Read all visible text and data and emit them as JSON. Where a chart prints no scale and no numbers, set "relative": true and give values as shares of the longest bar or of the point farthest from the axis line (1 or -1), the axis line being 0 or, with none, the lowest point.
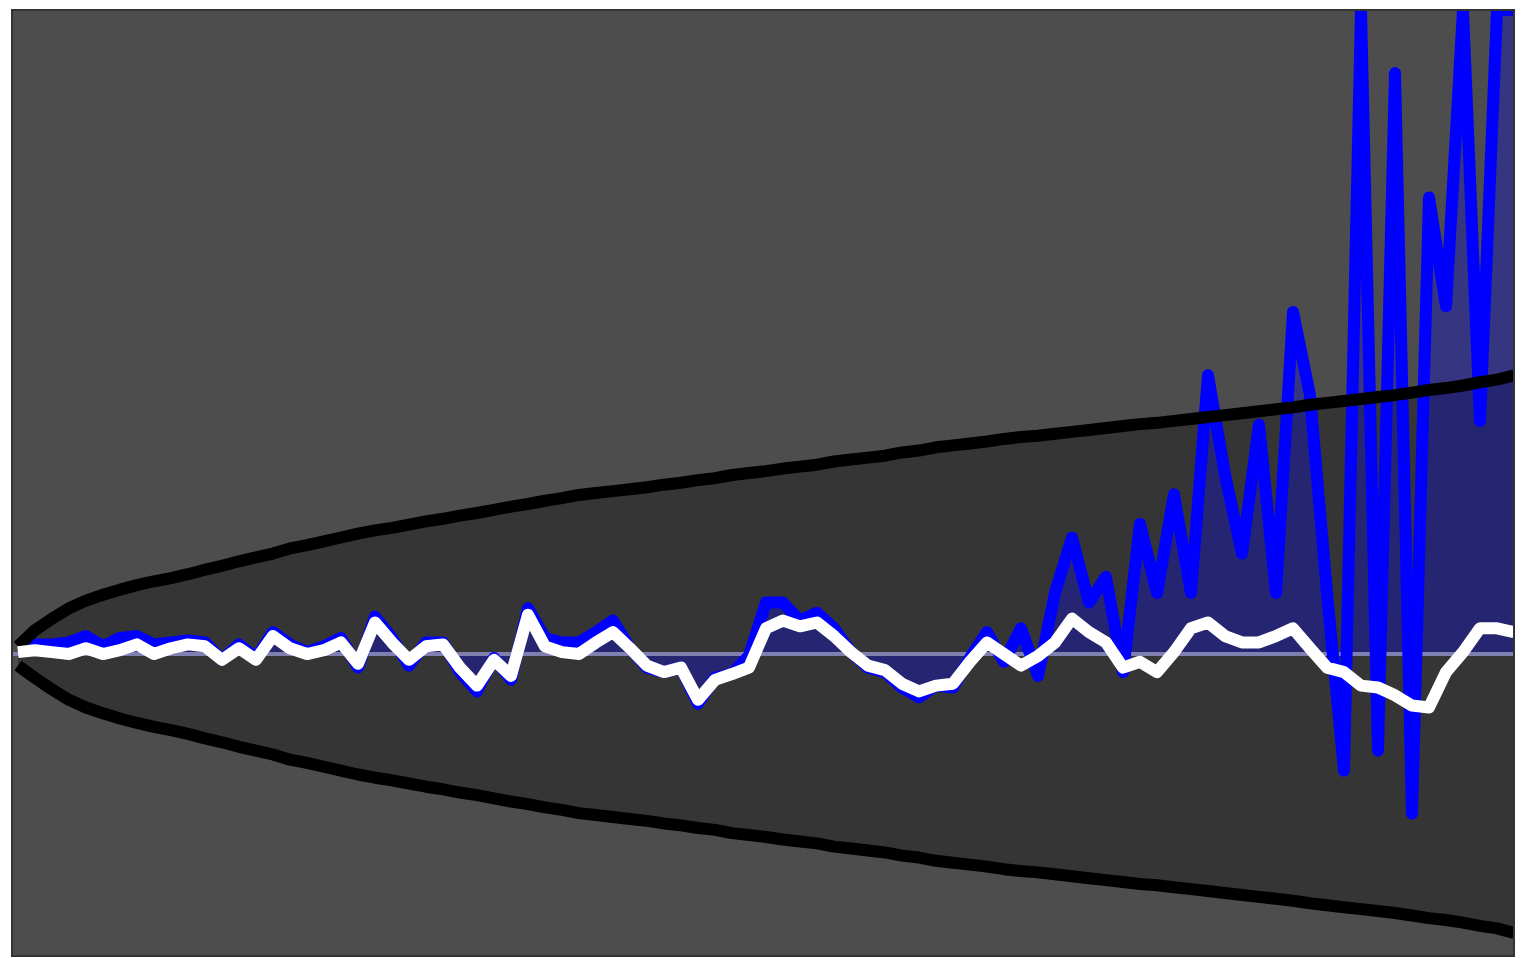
{
  "chart_data": {
    "type": "line",
    "relative": true,
    "ref_lines": [
      {
        "axis": "y",
        "value": 0,
        "color": "#8080b0"
      }
    ],
    "categories": [
      null,
      null,
      null,
      null,
      null,
      null,
      null,
      null,
      null,
      null,
      null,
      null,
      null,
      null,
      null,
      null,
      null,
      null,
      null,
      null,
      null,
      null,
      null,
      null,
      null,
      null,
      null,
      null,
      null,
      null,
      null,
      null,
      null,
      null,
      null,
      null,
      null,
      null,
      null,
      null,
      null,
      null,
      null,
      null,
      null,
      null,
      null,
      null,
      null,
      null,
      null,
      null,
      null,
      null,
      null,
      null,
      null,
      null,
      null,
      null,
      null,
      null,
      null,
      null,
      null,
      null,
      null,
      null,
      null,
      null,
      null,
      null,
      null,
      null,
      null,
      null,
      null,
      null,
      null,
      null,
      null,
      null,
      null,
      null,
      null,
      null,
      null,
      null,
      null
    ],
    "series": [
      {
        "type": "line",
        "color": "#ffffff",
        "values": [
          0.003,
          0.006,
          0.003,
          0,
          0.009,
          0,
          0.006,
          0.015,
          0,
          0.009,
          0.015,
          0.012,
          -0.009,
          0.009,
          -0.009,
          0.028,
          0.009,
          0,
          0.006,
          0.018,
          -0.015,
          0.049,
          0.018,
          -0.009,
          0.012,
          0.015,
          -0.021,
          -0.049,
          -0.009,
          -0.034,
          0.061,
          0.012,
          0.003,
          0,
          0.018,
          0.034,
          0.009,
          -0.018,
          -0.028,
          -0.021,
          -0.071,
          -0.04,
          -0.031,
          -0.021,
          0.04,
          0.052,
          0.043,
          0.049,
          0.028,
          0.003,
          -0.018,
          -0.025,
          -0.046,
          -0.058,
          -0.049,
          -0.046,
          -0.012,
          0.018,
          0,
          -0.018,
          -0.003,
          0.018,
          0.055,
          0.034,
          0.018,
          -0.021,
          -0.012,
          -0.028,
          0.003,
          0.04,
          0.049,
          0.028,
          0.018,
          0.018,
          0.028,
          0.04,
          0.009,
          -0.021,
          -0.028,
          -0.049,
          -0.052,
          -0.064,
          -0.08,
          -0.083,
          -0.028,
          0.003,
          0.04,
          0.04,
          0.034
        ],
        "lower": [
          -0.018,
          -0.037,
          -0.055,
          -0.071,
          -0.083,
          -0.092,
          -0.1,
          -0.107,
          -0.113,
          -0.118,
          -0.124,
          -0.131,
          -0.137,
          -0.144,
          -0.15,
          -0.156,
          -0.164,
          -0.169,
          -0.175,
          -0.181,
          -0.187,
          -0.192,
          -0.196,
          -0.201,
          -0.206,
          -0.21,
          -0.215,
          -0.219,
          -0.224,
          -0.229,
          -0.233,
          -0.238,
          -0.242,
          -0.247,
          -0.25,
          -0.253,
          -0.256,
          -0.259,
          -0.263,
          -0.266,
          -0.27,
          -0.273,
          -0.278,
          -0.281,
          -0.284,
          -0.288,
          -0.291,
          -0.294,
          -0.299,
          -0.302,
          -0.305,
          -0.308,
          -0.313,
          -0.316,
          -0.321,
          -0.324,
          -0.327,
          -0.33,
          -0.334,
          -0.337,
          -0.339,
          -0.342,
          -0.345,
          -0.348,
          -0.351,
          -0.354,
          -0.357,
          -0.359,
          -0.362,
          -0.365,
          -0.368,
          -0.371,
          -0.374,
          -0.377,
          -0.38,
          -0.383,
          -0.387,
          -0.39,
          -0.393,
          -0.396,
          -0.399,
          -0.402,
          -0.406,
          -0.41,
          -0.413,
          -0.417,
          -0.422,
          -0.426,
          -0.433
        ],
        "upper": [
          0.012,
          0.037,
          0.055,
          0.071,
          0.083,
          0.092,
          0.1,
          0.107,
          0.113,
          0.118,
          0.124,
          0.131,
          0.137,
          0.144,
          0.15,
          0.156,
          0.164,
          0.169,
          0.175,
          0.181,
          0.187,
          0.192,
          0.196,
          0.201,
          0.206,
          0.21,
          0.215,
          0.219,
          0.224,
          0.229,
          0.233,
          0.238,
          0.242,
          0.247,
          0.25,
          0.253,
          0.256,
          0.259,
          0.263,
          0.266,
          0.27,
          0.273,
          0.278,
          0.281,
          0.284,
          0.288,
          0.291,
          0.294,
          0.299,
          0.302,
          0.305,
          0.308,
          0.313,
          0.316,
          0.321,
          0.324,
          0.327,
          0.33,
          0.334,
          0.337,
          0.339,
          0.342,
          0.345,
          0.348,
          0.351,
          0.354,
          0.357,
          0.359,
          0.362,
          0.365,
          0.368,
          0.371,
          0.374,
          0.377,
          0.38,
          0.383,
          0.387,
          0.39,
          0.393,
          0.396,
          0.399,
          0.402,
          0.406,
          0.41,
          0.413,
          0.417,
          0.422,
          0.426,
          0.433
        ]
      },
      {
        "type": "area",
        "color": "#0000ff",
        "values": [
          0.012,
          0.015,
          0.015,
          0.018,
          0.028,
          0.012,
          0.025,
          0.028,
          0.015,
          0.018,
          0.021,
          0.018,
          -0.009,
          0.015,
          -0.006,
          0.034,
          0.015,
          0.003,
          0.012,
          0.025,
          -0.021,
          0.058,
          0.025,
          -0.018,
          0.018,
          0.018,
          -0.028,
          -0.058,
          -0.006,
          -0.04,
          0.071,
          0.025,
          0.018,
          0.018,
          0.034,
          0.052,
          0.009,
          -0.021,
          -0.028,
          -0.021,
          -0.077,
          -0.037,
          -0.031,
          -0.003,
          0.08,
          0.08,
          0.052,
          0.064,
          0.04,
          0.003,
          -0.021,
          -0.028,
          -0.052,
          -0.067,
          -0.049,
          -0.052,
          -0.006,
          0.034,
          -0.012,
          0.04,
          -0.034,
          0.095,
          0.181,
          0.08,
          0.12,
          -0.028,
          0.202,
          0.095,
          0.248,
          0.095,
          0.433,
          0.279,
          0.156,
          0.356,
          0.095,
          0.531,
          0.402,
          0.095,
          -0.181,
          1,
          -0.15,
          0.902,
          -0.248,
          0.709,
          0.54,
          1,
          0.362,
          1,
          1
        ]
      },
      {
        "color": "#000000",
        "values": [
          0.012,
          0.037,
          0.055,
          0.071,
          0.083,
          0.092,
          0.1,
          0.107,
          0.113,
          0.118,
          0.124,
          0.131,
          0.137,
          0.144,
          0.15,
          0.156,
          0.164,
          0.169,
          0.175,
          0.181,
          0.187,
          0.192,
          0.196,
          0.201,
          0.206,
          0.21,
          0.215,
          0.219,
          0.224,
          0.229,
          0.233,
          0.238,
          0.242,
          0.247,
          0.25,
          0.253,
          0.256,
          0.259,
          0.263,
          0.266,
          0.27,
          0.273,
          0.278,
          0.281,
          0.284,
          0.288,
          0.291,
          0.294,
          0.299,
          0.302,
          0.305,
          0.308,
          0.313,
          0.316,
          0.321,
          0.324,
          0.327,
          0.33,
          0.334,
          0.337,
          0.339,
          0.342,
          0.345,
          0.348,
          0.351,
          0.354,
          0.357,
          0.359,
          0.362,
          0.365,
          0.368,
          0.371,
          0.374,
          0.377,
          0.38,
          0.383,
          0.387,
          0.39,
          0.393,
          0.396,
          0.399,
          0.402,
          0.406,
          0.41,
          0.413,
          0.417,
          0.422,
          0.426,
          0.433
        ]
      },
      {
        "color": "#000000",
        "values": [
          -0.018,
          -0.037,
          -0.055,
          -0.071,
          -0.083,
          -0.092,
          -0.1,
          -0.107,
          -0.113,
          -0.118,
          -0.124,
          -0.131,
          -0.137,
          -0.144,
          -0.15,
          -0.156,
          -0.164,
          -0.169,
          -0.175,
          -0.181,
          -0.187,
          -0.192,
          -0.196,
          -0.201,
          -0.206,
          -0.21,
          -0.215,
          -0.219,
          -0.224,
          -0.229,
          -0.233,
          -0.238,
          -0.242,
          -0.247,
          -0.25,
          -0.253,
          -0.256,
          -0.259,
          -0.263,
          -0.266,
          -0.27,
          -0.273,
          -0.278,
          -0.281,
          -0.284,
          -0.288,
          -0.291,
          -0.294,
          -0.299,
          -0.302,
          -0.305,
          -0.308,
          -0.313,
          -0.316,
          -0.321,
          -0.324,
          -0.327,
          -0.33,
          -0.334,
          -0.337,
          -0.339,
          -0.342,
          -0.345,
          -0.348,
          -0.351,
          -0.354,
          -0.357,
          -0.359,
          -0.362,
          -0.365,
          -0.368,
          -0.371,
          -0.374,
          -0.377,
          -0.38,
          -0.383,
          -0.387,
          -0.39,
          -0.393,
          -0.396,
          -0.399,
          -0.402,
          -0.406,
          -0.41,
          -0.413,
          -0.417,
          -0.422,
          -0.426,
          -0.433
        ]
      }
    ]
  }
}
